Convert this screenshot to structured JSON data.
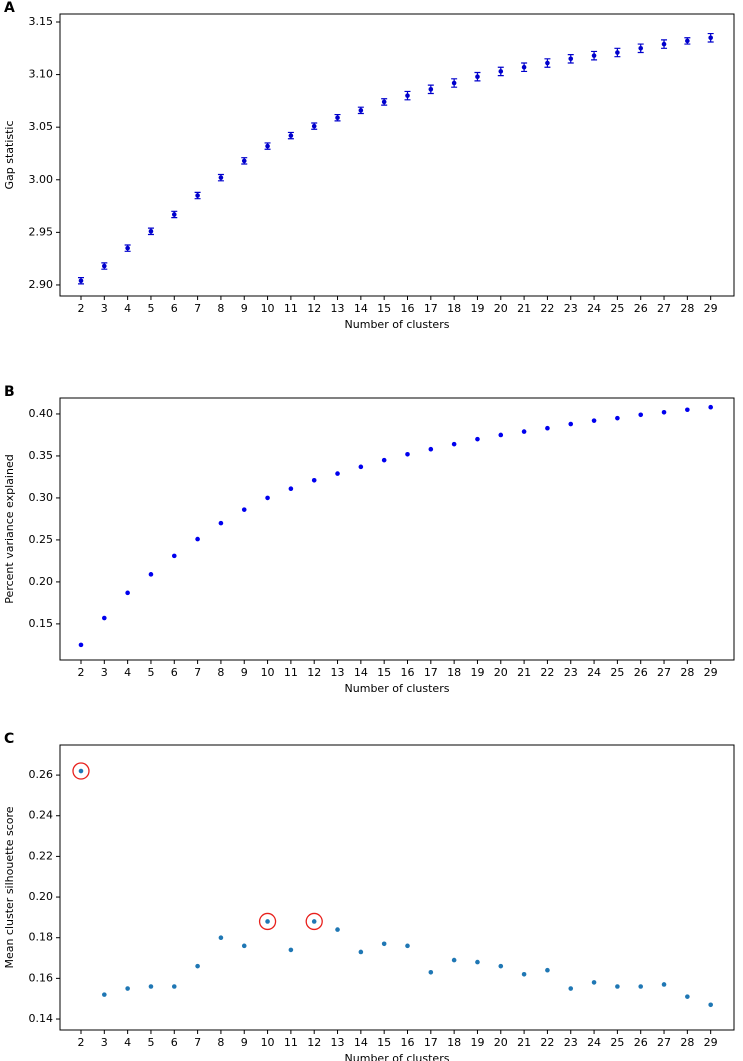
{
  "chart_data": [
    {
      "type": "scatter",
      "label": "A",
      "xlabel": "Number of clusters",
      "ylabel": "Gap statistic",
      "color": "#0000cc",
      "x": [
        2,
        3,
        4,
        5,
        6,
        7,
        8,
        9,
        10,
        11,
        12,
        13,
        14,
        15,
        16,
        17,
        18,
        19,
        20,
        21,
        22,
        23,
        24,
        25,
        26,
        27,
        28,
        29
      ],
      "values": [
        2.904,
        2.918,
        2.935,
        2.951,
        2.967,
        2.985,
        3.002,
        3.018,
        3.032,
        3.042,
        3.051,
        3.059,
        3.066,
        3.074,
        3.08,
        3.086,
        3.092,
        3.098,
        3.103,
        3.107,
        3.111,
        3.115,
        3.118,
        3.121,
        3.125,
        3.129,
        3.132,
        3.135
      ],
      "errors": [
        0.003,
        0.003,
        0.003,
        0.003,
        0.003,
        0.003,
        0.003,
        0.003,
        0.003,
        0.003,
        0.003,
        0.003,
        0.003,
        0.003,
        0.004,
        0.004,
        0.004,
        0.004,
        0.004,
        0.004,
        0.004,
        0.004,
        0.004,
        0.004,
        0.004,
        0.004,
        0.003,
        0.004
      ],
      "xlim": [
        1.1,
        30.0
      ],
      "xticks": [
        2,
        3,
        4,
        5,
        6,
        7,
        8,
        9,
        10,
        11,
        12,
        13,
        14,
        15,
        16,
        17,
        18,
        19,
        20,
        21,
        22,
        23,
        24,
        25,
        26,
        27,
        28,
        29
      ],
      "ylim": [
        2.8895,
        3.1576
      ],
      "yticks": [
        {
          "value": 2.9,
          "label": "2.90"
        },
        2.95,
        {
          "value": 3.0,
          "label": "3.00"
        },
        3.05,
        {
          "value": 3.1,
          "label": "3.10"
        },
        3.15
      ]
    },
    {
      "type": "scatter",
      "label": "B",
      "xlabel": "Number of clusters",
      "ylabel": "Percent variance explained",
      "color": "#0000ee",
      "x": [
        2,
        3,
        4,
        5,
        6,
        7,
        8,
        9,
        10,
        11,
        12,
        13,
        14,
        15,
        16,
        17,
        18,
        19,
        20,
        21,
        22,
        23,
        24,
        25,
        26,
        27,
        28,
        29
      ],
      "values": [
        0.125,
        0.157,
        0.187,
        0.209,
        0.231,
        0.251,
        0.27,
        0.286,
        0.3,
        0.311,
        0.321,
        0.329,
        0.337,
        0.345,
        0.352,
        0.358,
        0.364,
        0.37,
        0.375,
        0.379,
        0.383,
        0.388,
        0.392,
        0.395,
        0.399,
        0.402,
        0.405,
        0.408
      ],
      "xlim": [
        1.1,
        30.0
      ],
      "xticks": [
        2,
        3,
        4,
        5,
        6,
        7,
        8,
        9,
        10,
        11,
        12,
        13,
        14,
        15,
        16,
        17,
        18,
        19,
        20,
        21,
        22,
        23,
        24,
        25,
        26,
        27,
        28,
        29
      ],
      "ylim": [
        0.107,
        0.419
      ],
      "yticks": [
        0.15,
        {
          "value": 0.2,
          "label": "0.20"
        },
        0.25,
        {
          "value": 0.3,
          "label": "0.30"
        },
        0.35,
        {
          "value": 0.4,
          "label": "0.40"
        }
      ]
    },
    {
      "type": "scatter",
      "label": "C",
      "xlabel": "Number of clusters",
      "ylabel": "Mean cluster silhouette score",
      "color": "#1f77b4",
      "x": [
        2,
        3,
        4,
        5,
        6,
        7,
        8,
        9,
        10,
        11,
        12,
        13,
        14,
        15,
        16,
        17,
        18,
        19,
        20,
        21,
        22,
        23,
        24,
        25,
        26,
        27,
        28,
        29
      ],
      "values": [
        0.262,
        0.152,
        0.155,
        0.156,
        0.156,
        0.166,
        0.18,
        0.176,
        0.188,
        0.174,
        0.188,
        0.184,
        0.173,
        0.177,
        0.176,
        0.163,
        0.169,
        0.168,
        0.166,
        0.162,
        0.164,
        0.155,
        0.158,
        0.156,
        0.156,
        0.157,
        0.151,
        0.147
      ],
      "highlight": [
        0,
        8,
        10
      ],
      "highlight_color": "#e8201c",
      "xlim": [
        1.1,
        30.0
      ],
      "xticks": [
        2,
        3,
        4,
        5,
        6,
        7,
        8,
        9,
        10,
        11,
        12,
        13,
        14,
        15,
        16,
        17,
        18,
        19,
        20,
        21,
        22,
        23,
        24,
        25,
        26,
        27,
        28,
        29
      ],
      "ylim": [
        0.1346,
        0.2748
      ],
      "yticks": [
        0.14,
        0.16,
        0.18,
        {
          "value": 0.2,
          "label": "0.20"
        },
        0.22,
        0.24,
        0.26
      ]
    }
  ]
}
